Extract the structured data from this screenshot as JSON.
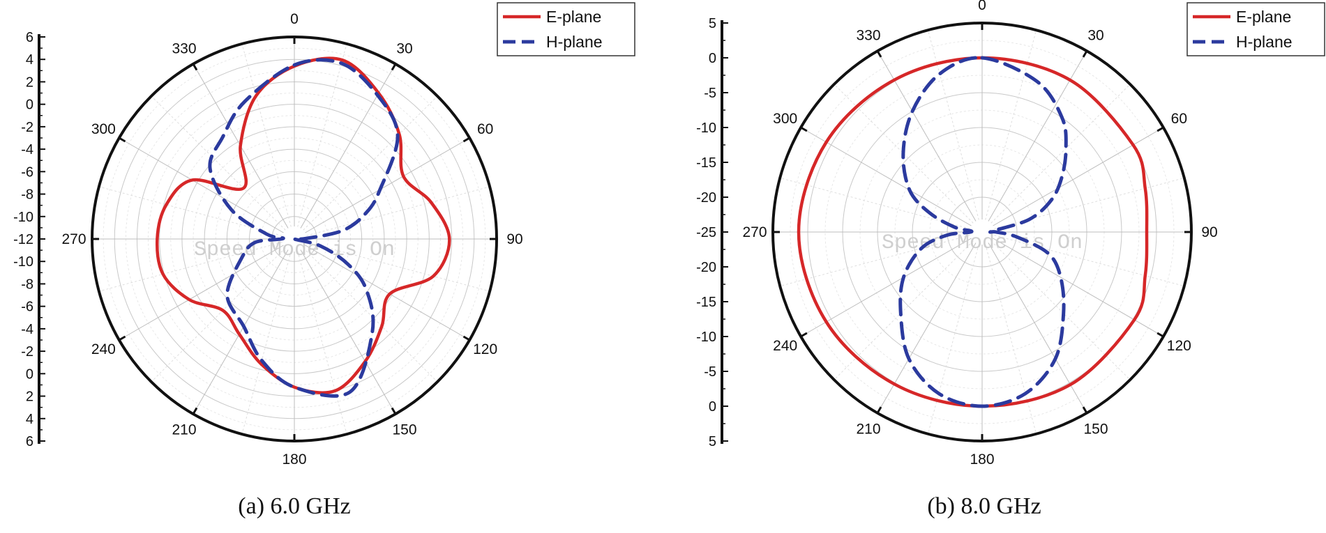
{
  "chart_data": [
    {
      "type": "polar-line",
      "caption": "(a) 6.0 GHz",
      "watermark": "Speed Mode is On",
      "angle_labels": [
        "0",
        "30",
        "60",
        "90",
        "120",
        "150",
        "180",
        "210",
        "240",
        "270",
        "300",
        "330"
      ],
      "radial_tick_labels_upper": [
        "6",
        "4",
        "2",
        "0",
        "-2",
        "-4",
        "-6",
        "-8",
        "-10",
        "-12"
      ],
      "radial_tick_labels_lower": [
        "-10",
        "-8",
        "-6",
        "-4",
        "-2",
        "0",
        "2",
        "4",
        "6"
      ],
      "radial_range": [
        -12,
        6
      ],
      "radial_step": 2,
      "grid": true,
      "legend_position": "top-right",
      "series": [
        {
          "name": "E-plane",
          "color": "#d62728",
          "style": "solid",
          "points": [
            [
              0,
              3.4
            ],
            [
              15,
              4.5
            ],
            [
              30,
              3.0
            ],
            [
              45,
              1.2
            ],
            [
              60,
              -0.8
            ],
            [
              75,
              0.6
            ],
            [
              90,
              1.8
            ],
            [
              105,
              0.8
            ],
            [
              120,
              -2.2
            ],
            [
              135,
              -1.0
            ],
            [
              150,
              0.6
            ],
            [
              165,
              2.0
            ],
            [
              180,
              1.2
            ],
            [
              195,
              -0.5
            ],
            [
              210,
              -2.2
            ],
            [
              225,
              -3.0
            ],
            [
              240,
              -1.2
            ],
            [
              255,
              0.1
            ],
            [
              270,
              0.2
            ],
            [
              285,
              -0.2
            ],
            [
              300,
              -1.5
            ],
            [
              315,
              -5.6
            ],
            [
              330,
              -2.4
            ],
            [
              345,
              1.2
            ],
            [
              360,
              3.4
            ]
          ]
        },
        {
          "name": "H-plane",
          "color": "#2b3a9e",
          "style": "dashed",
          "points": [
            [
              0,
              3.5
            ],
            [
              15,
              4.2
            ],
            [
              30,
              2.8
            ],
            [
              45,
              1.0
            ],
            [
              60,
              -3.2
            ],
            [
              70,
              -5.2
            ],
            [
              80,
              -7.6
            ],
            [
              88,
              -11.0
            ],
            [
              95,
              -12.0
            ],
            [
              105,
              -9.6
            ],
            [
              115,
              -6.8
            ],
            [
              125,
              -4.2
            ],
            [
              140,
              -1.2
            ],
            [
              160,
              2.5
            ],
            [
              180,
              1.2
            ],
            [
              195,
              -0.8
            ],
            [
              210,
              -3.0
            ],
            [
              230,
              -4.2
            ],
            [
              250,
              -7.0
            ],
            [
              265,
              -8.5
            ],
            [
              272,
              -11.0
            ],
            [
              280,
              -9.5
            ],
            [
              295,
              -5.8
            ],
            [
              310,
              -2.2
            ],
            [
              325,
              -0.9
            ],
            [
              340,
              1.0
            ],
            [
              360,
              3.5
            ]
          ]
        }
      ]
    },
    {
      "type": "polar-line",
      "caption": "(b) 8.0 GHz",
      "watermark": "Speed Mode is On",
      "angle_labels": [
        "0",
        "30",
        "60",
        "90",
        "120",
        "150",
        "180",
        "210",
        "240",
        "270",
        "300",
        "330"
      ],
      "radial_tick_labels_upper": [
        "5",
        "0",
        "-5",
        "-10",
        "-15",
        "-20",
        "-25"
      ],
      "radial_tick_labels_lower": [
        "-20",
        "-15",
        "-10",
        "-5",
        "0",
        "5"
      ],
      "radial_range": [
        -25,
        5
      ],
      "radial_step": 5,
      "grid": true,
      "legend_position": "top-right",
      "series": [
        {
          "name": "E-plane",
          "color": "#d62728",
          "style": "solid",
          "points": [
            [
              0,
              0.0
            ],
            [
              30,
              0.2
            ],
            [
              60,
              0.0
            ],
            [
              75,
              -0.8
            ],
            [
              90,
              -1.4
            ],
            [
              105,
              -0.8
            ],
            [
              120,
              0.2
            ],
            [
              150,
              0.3
            ],
            [
              180,
              0.0
            ],
            [
              210,
              0.2
            ],
            [
              240,
              0.8
            ],
            [
              270,
              1.3
            ],
            [
              300,
              0.8
            ],
            [
              330,
              0.2
            ],
            [
              360,
              0.0
            ]
          ]
        },
        {
          "name": "H-plane",
          "color": "#2b3a9e",
          "style": "dashed",
          "points": [
            [
              0,
              0.0
            ],
            [
              20,
              -2.0
            ],
            [
              35,
              -5.0
            ],
            [
              45,
              -8.0
            ],
            [
              55,
              -11.0
            ],
            [
              65,
              -14.0
            ],
            [
              75,
              -18.0
            ],
            [
              85,
              -23.5
            ],
            [
              90,
              -23.0
            ],
            [
              98,
              -20.0
            ],
            [
              108,
              -15.0
            ],
            [
              120,
              -12.0
            ],
            [
              135,
              -8.5
            ],
            [
              150,
              -4.0
            ],
            [
              165,
              -1.0
            ],
            [
              180,
              0.0
            ],
            [
              195,
              -1.0
            ],
            [
              210,
              -4.0
            ],
            [
              225,
              -8.5
            ],
            [
              240,
              -12.0
            ],
            [
              255,
              -16.0
            ],
            [
              265,
              -20.0
            ],
            [
              272,
              -23.5
            ],
            [
              280,
              -21.0
            ],
            [
              290,
              -17.0
            ],
            [
              300,
              -13.0
            ],
            [
              315,
              -9.0
            ],
            [
              330,
              -5.0
            ],
            [
              345,
              -1.5
            ],
            [
              360,
              0.0
            ]
          ]
        }
      ]
    }
  ]
}
